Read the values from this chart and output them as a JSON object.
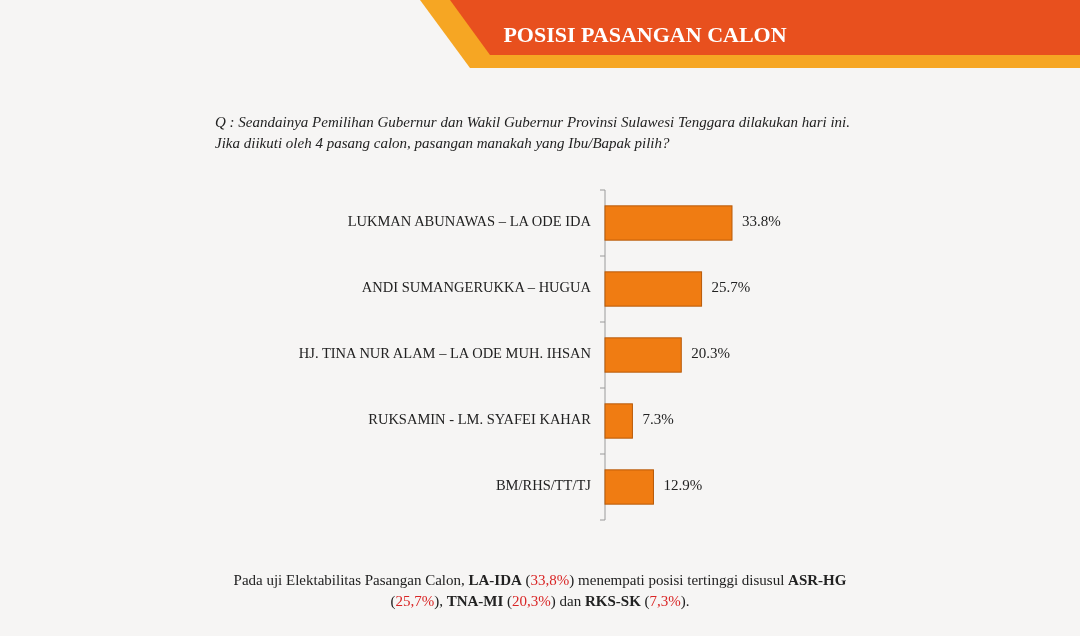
{
  "chart_data": {
    "type": "bar",
    "orientation": "horizontal",
    "title": "POSISI PASANGAN CALON",
    "subtitle": "Q :  Seandainya Pemilihan Gubernur dan Wakil Gubernur Provinsi Sulawesi Tenggara dilakukan hari ini.\nJika diikuti oleh 4 pasang calon, pasangan manakah yang Ibu/Bapak pilih?",
    "categories": [
      "LUKMAN ABUNAWAS – LA ODE IDA",
      "ANDI SUMANGERUKKA – HUGUA",
      "HJ. TINA NUR ALAM – LA ODE MUH. IHSAN",
      "RUKSAMIN -  LM. SYAFEI KAHAR",
      "BM/RHS/TT/TJ"
    ],
    "values": [
      33.8,
      25.7,
      20.3,
      7.3,
      12.9
    ],
    "value_labels": [
      "33.8%",
      "25.7%",
      "20.3%",
      "7.3%",
      "12.9%"
    ],
    "color": "#f07c12",
    "annotations": [
      "Pada uji Elektabilitas Pasangan Calon,  LA-IDA (33,8%) menempati posisi tertinggi disusul ASR-HG\n(25,7%), TNA-MI  (20,3%) dan RKS-SK (7,3%)."
    ]
  }
}
